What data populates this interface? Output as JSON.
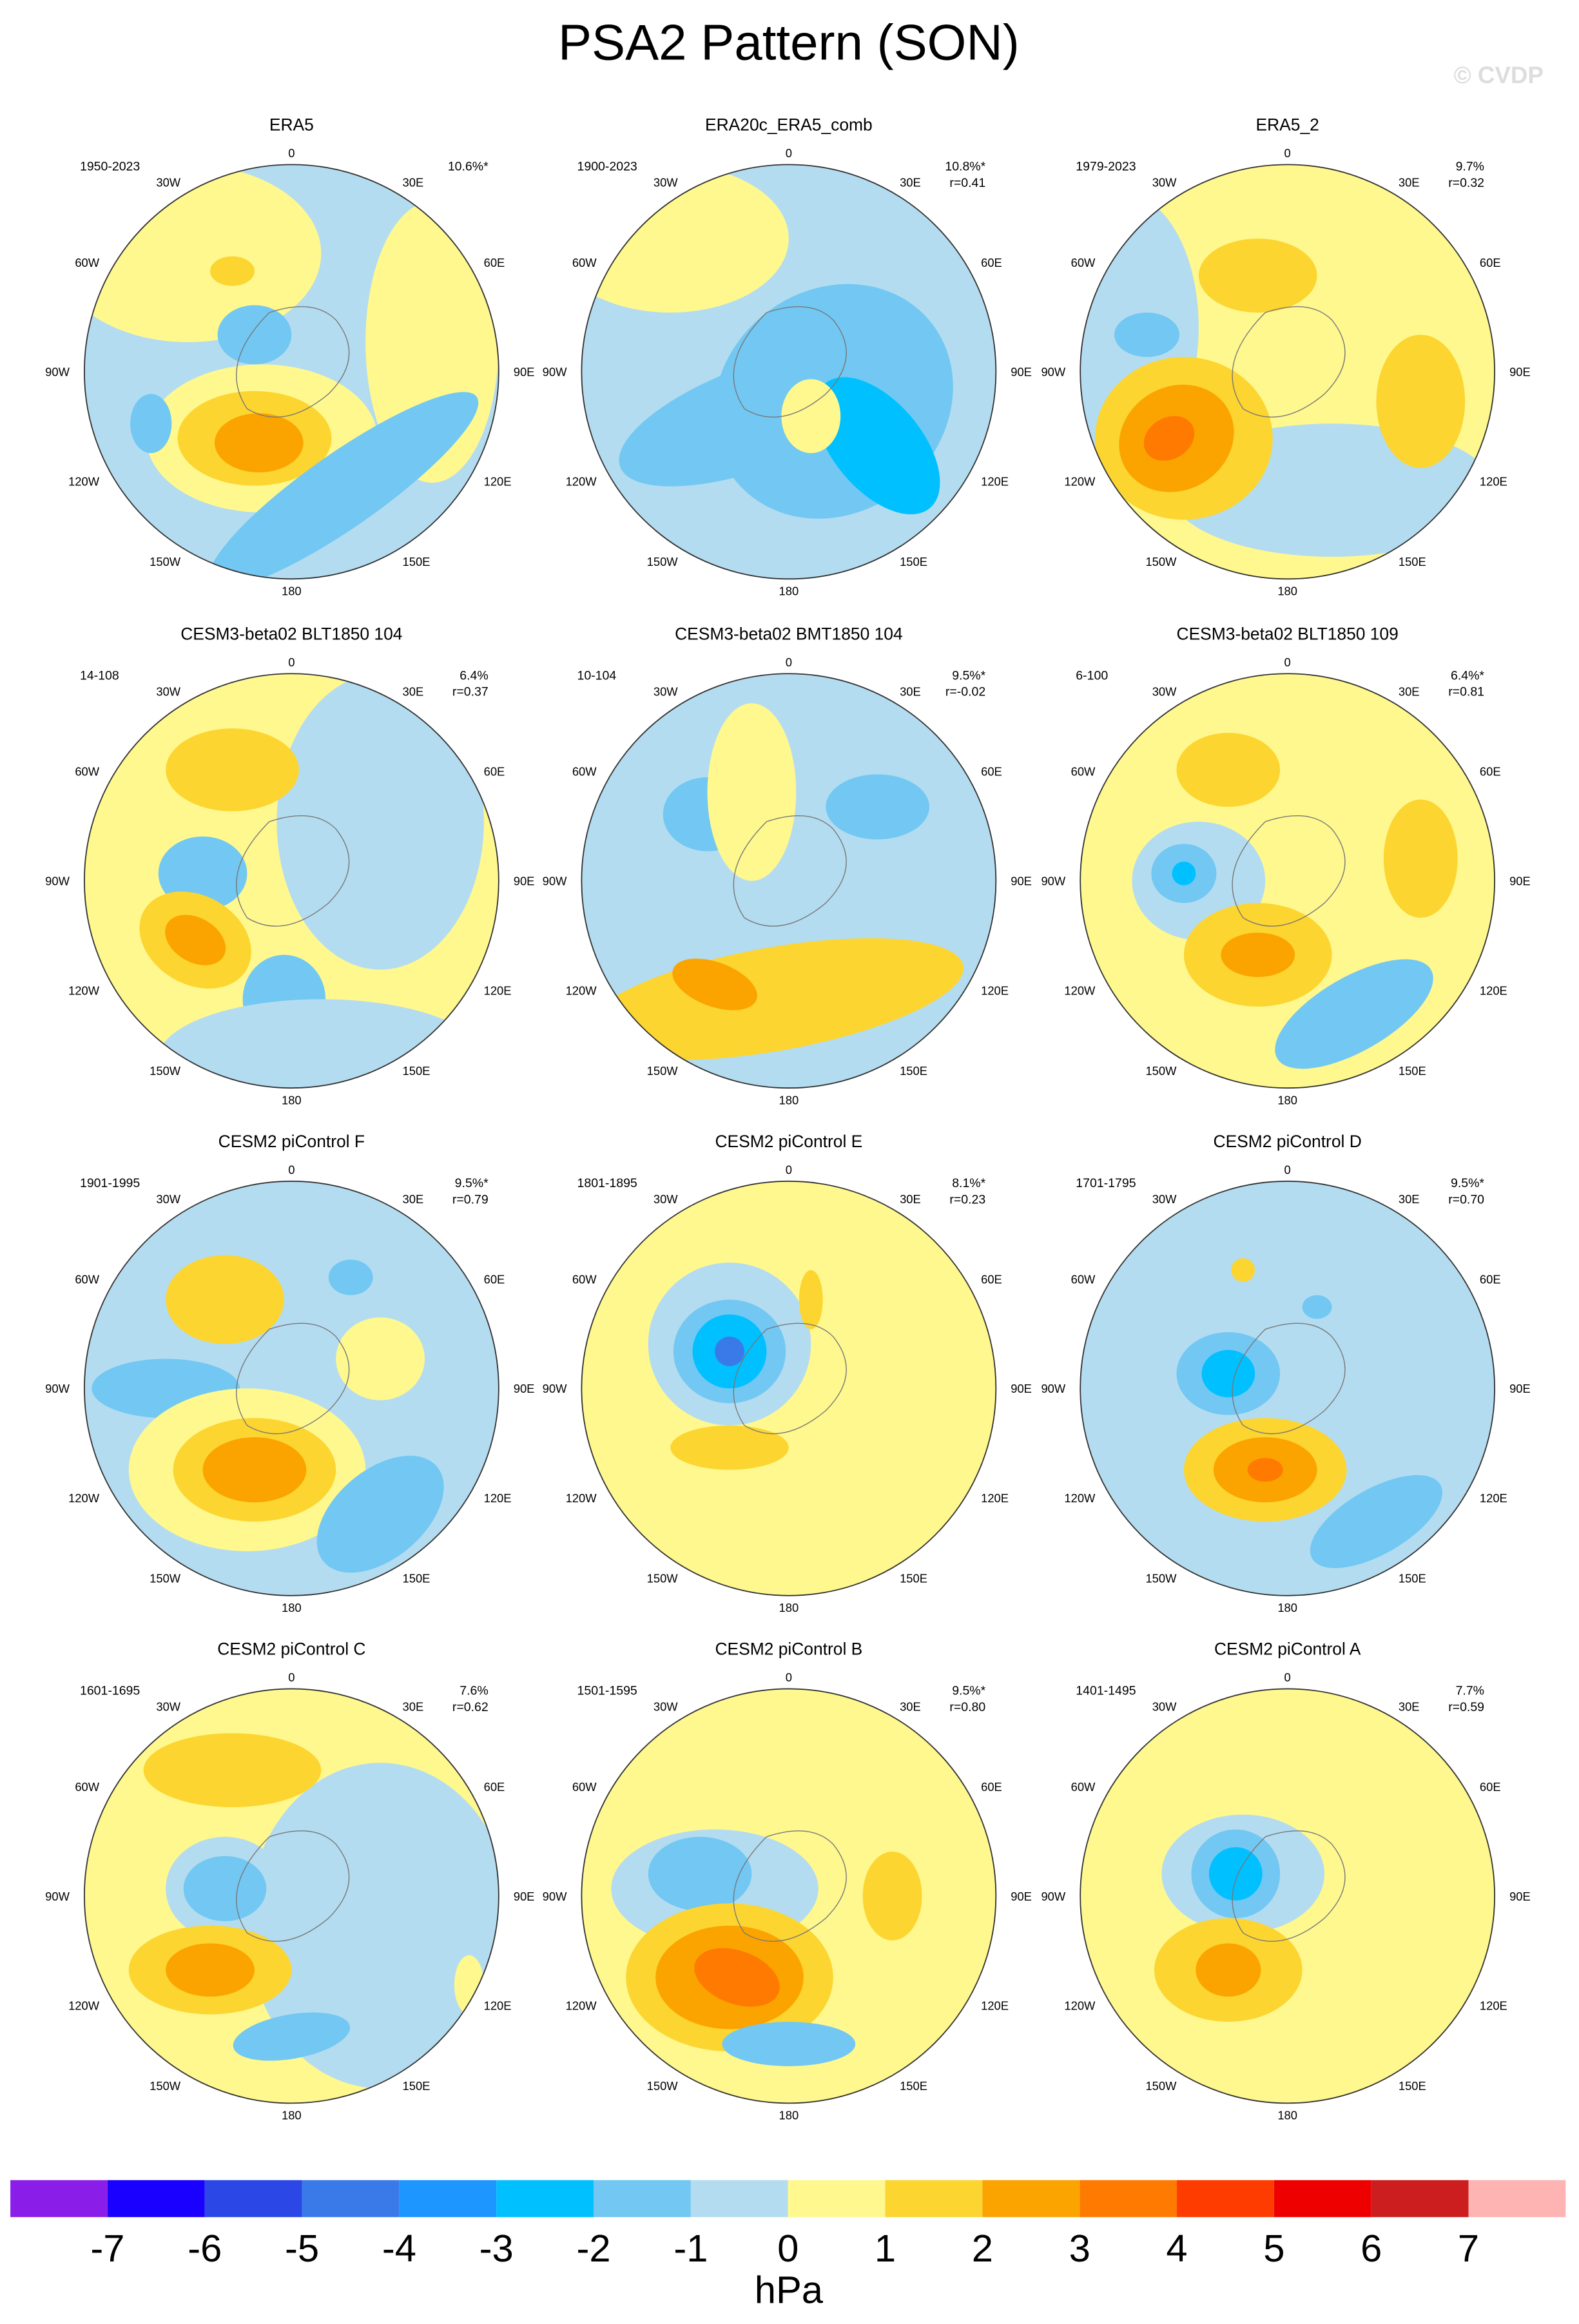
{
  "title": "PSA2 Pattern (SON)",
  "watermark": "© CVDP",
  "longitude_labels": [
    "0",
    "30E",
    "60E",
    "90E",
    "120E",
    "150E",
    "180",
    "150W",
    "120W",
    "90W",
    "60W",
    "30W"
  ],
  "panels": [
    {
      "title": "ERA5",
      "period": "1950-2023",
      "variance": "10.6%*"
    },
    {
      "title": "ERA20c_ERA5_comb",
      "period": "1900-2023",
      "variance": "10.8%*",
      "correlation": "r=0.41"
    },
    {
      "title": "ERA5_2",
      "period": "1979-2023",
      "variance": "9.7%",
      "correlation": "r=0.32"
    },
    {
      "title": "CESM3-beta02 BLT1850 104",
      "period": "14-108",
      "variance": "6.4%",
      "correlation": "r=0.37"
    },
    {
      "title": "CESM3-beta02 BMT1850 104",
      "period": "10-104",
      "variance": "9.5%*",
      "correlation": "r=-0.02"
    },
    {
      "title": "CESM3-beta02 BLT1850 109",
      "period": "6-100",
      "variance": "6.4%*",
      "correlation": "r=0.81"
    },
    {
      "title": "CESM2 piControl F",
      "period": "1901-1995",
      "variance": "9.5%*",
      "correlation": "r=0.79"
    },
    {
      "title": "CESM2 piControl E",
      "period": "1801-1895",
      "variance": "8.1%*",
      "correlation": "r=0.23"
    },
    {
      "title": "CESM2 piControl D",
      "period": "1701-1795",
      "variance": "9.5%*",
      "correlation": "r=0.70"
    },
    {
      "title": "CESM2 piControl C",
      "period": "1601-1695",
      "variance": "7.6%",
      "correlation": "r=0.62"
    },
    {
      "title": "CESM2 piControl B",
      "period": "1501-1595",
      "variance": "9.5%*",
      "correlation": "r=0.80"
    },
    {
      "title": "CESM2 piControl A",
      "period": "1401-1495",
      "variance": "7.7%",
      "correlation": "r=0.59"
    }
  ],
  "colorbar": {
    "colors": [
      "#8a1ee8",
      "#1a00ff",
      "#2b47e6",
      "#3a7ae8",
      "#1e96ff",
      "#00c0ff",
      "#72c8f2",
      "#b4dcf0",
      "#fff88f",
      "#fcd530",
      "#fba400",
      "#ff7a00",
      "#ff3c00",
      "#ee0000",
      "#cc1e1e",
      "#ffb4b4"
    ],
    "labels": [
      -7,
      -6,
      -5,
      -4,
      -3,
      -2,
      -1,
      0,
      1,
      2,
      3,
      4,
      5,
      6,
      7
    ],
    "unit": "hPa"
  }
}
